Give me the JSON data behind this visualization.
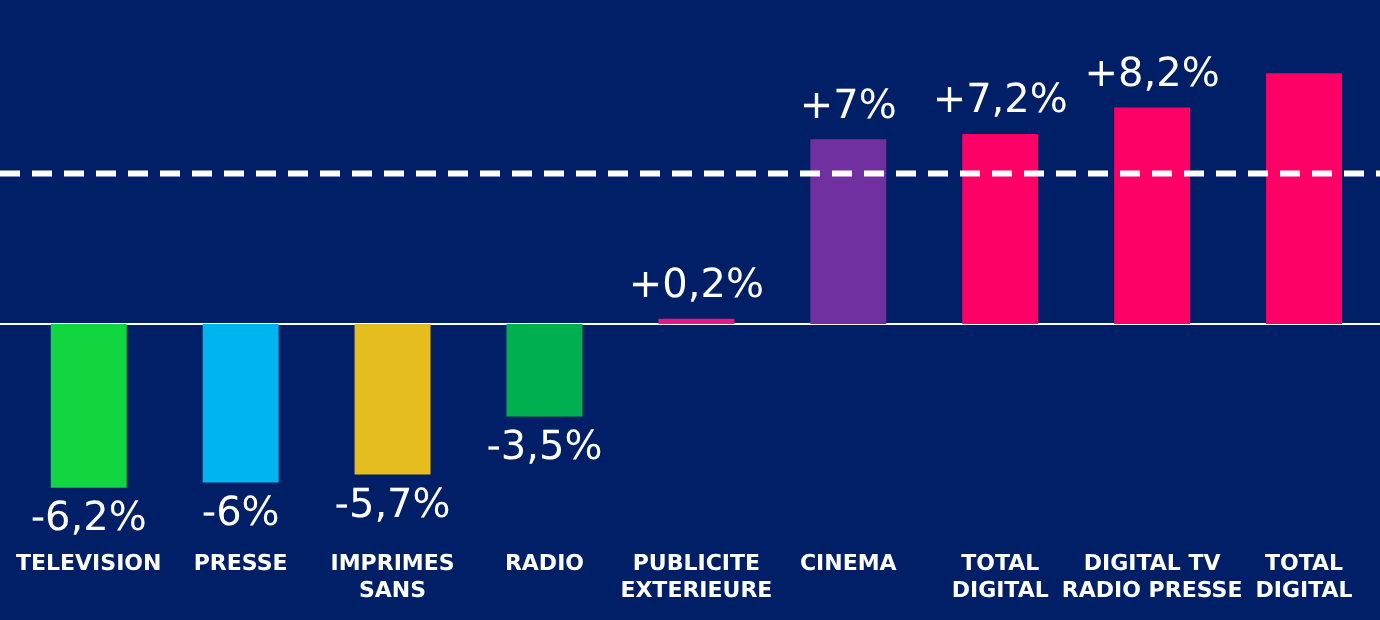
{
  "chart_data": {
    "type": "bar",
    "categories": [
      "TELEVISION",
      "PRESSE",
      "IMPRIMES SANS",
      "RADIO",
      "PUBLICITE EXTERIEURE",
      "CINEMA",
      "TOTAL DIGITAL",
      "DIGITAL TV RADIO PRESSE",
      "TOTAL DIGITAL"
    ],
    "values": [
      -6.2,
      -6,
      -5.7,
      -3.5,
      0.2,
      7,
      7.2,
      8.2,
      9.5
    ],
    "value_labels": [
      "-6,2%",
      "-6%",
      "-5,7%",
      "-3,5%",
      "+0,2%",
      "+7%",
      "+7,2%",
      "+8,2%",
      null
    ],
    "colors": [
      "#12d63f",
      "#00b4f0",
      "#e5bd1e",
      "#00b050",
      "#e6197e",
      "#7030a0",
      "#ff0066",
      "#ff0066",
      "#ff0066"
    ],
    "ref_lines": [
      {
        "axis": "y",
        "value": 5.7,
        "color": "#ffffff",
        "line_style": "dashed"
      }
    ],
    "grid": false,
    "legend": false,
    "tick_labels": "x"
  }
}
